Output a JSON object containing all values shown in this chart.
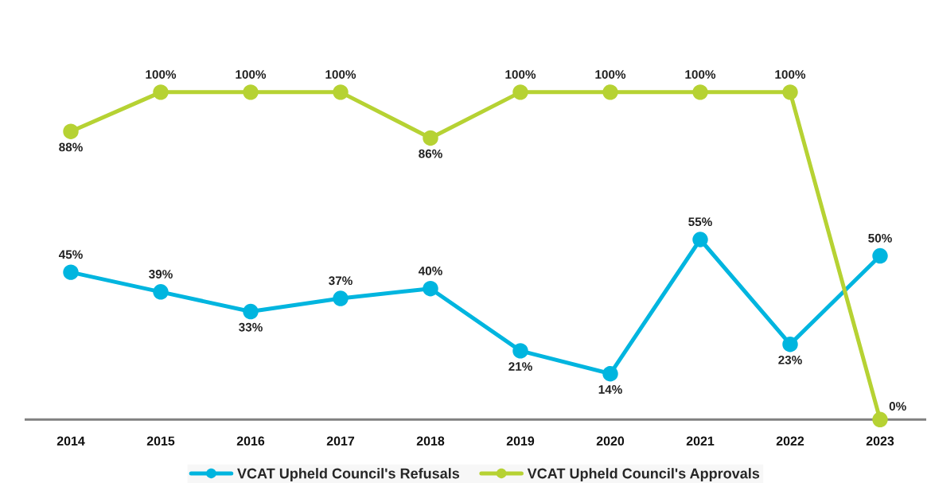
{
  "chart_data": {
    "type": "line",
    "categories": [
      "2014",
      "2015",
      "2016",
      "2017",
      "2018",
      "2019",
      "2020",
      "2021",
      "2022",
      "2023"
    ],
    "tick_labels": "x",
    "legend": "bottom",
    "marker": "circle",
    "line_style": "solid",
    "grid": false,
    "series": [
      {
        "name": "VCAT Upheld Council's Refusals",
        "color": "#00b5df",
        "values": [
          45,
          39,
          33,
          37,
          40,
          21,
          14,
          55,
          23,
          50
        ],
        "value_labels": [
          "45%",
          "39%",
          "33%",
          "37%",
          "40%",
          "21%",
          "14%",
          "55%",
          "23%",
          "50%"
        ]
      },
      {
        "name": "VCAT Upheld Council's Approvals",
        "color": "#b6d233",
        "values": [
          88,
          100,
          100,
          100,
          86,
          100,
          100,
          100,
          100,
          0
        ],
        "value_labels": [
          "88%",
          "100%",
          "100%",
          "100%",
          "86%",
          "100%",
          "100%",
          "100%",
          "100%",
          "0%"
        ]
      }
    ]
  }
}
